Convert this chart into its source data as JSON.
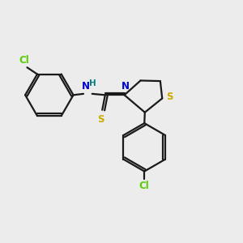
{
  "bg_color": "#ececec",
  "bond_color": "#1a1a1a",
  "cl_color": "#55cc00",
  "n_color": "#0000cc",
  "s_color_ring": "#ccaa00",
  "s_color_thio": "#ccaa00",
  "h_color": "#008080",
  "lw": 1.6,
  "fs": 8.5,
  "xlim": [
    0,
    10
  ],
  "ylim": [
    0,
    10
  ]
}
